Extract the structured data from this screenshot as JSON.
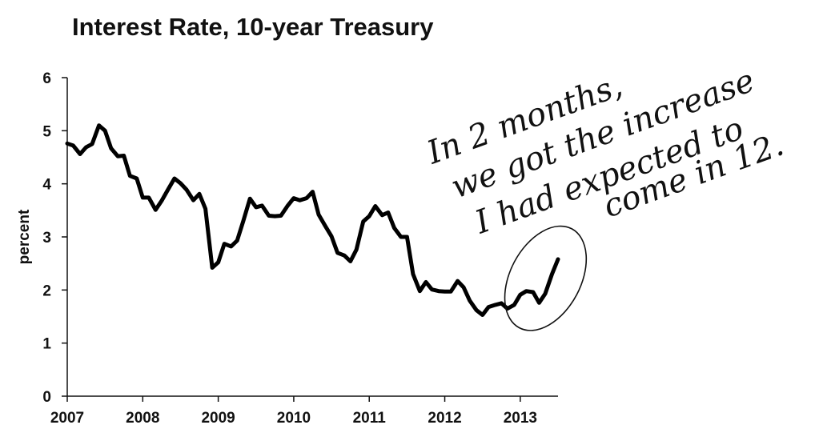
{
  "chart_data": {
    "type": "line",
    "title": "Interest Rate, 10-year Treasury",
    "ylabel": "percent",
    "xlabel": "",
    "ylim": [
      0,
      6
    ],
    "xlim": [
      2007,
      2013.5
    ],
    "yticks": [
      "0",
      "1",
      "2",
      "3",
      "4",
      "5",
      "6"
    ],
    "xticks": [
      "2007",
      "2008",
      "2009",
      "2010",
      "2011",
      "2012",
      "2013"
    ],
    "grid": false,
    "legend": "none",
    "line_color": "#000000",
    "series": [
      {
        "x": [
          2007.0,
          2007.08,
          2007.17,
          2007.25,
          2007.33,
          2007.42,
          2007.5,
          2007.58,
          2007.67,
          2007.75,
          2007.83,
          2007.92,
          2008.0,
          2008.08,
          2008.17,
          2008.25,
          2008.33,
          2008.42,
          2008.5,
          2008.58,
          2008.67,
          2008.75,
          2008.83,
          2008.92,
          2009.0,
          2009.08,
          2009.17,
          2009.25,
          2009.33,
          2009.42,
          2009.5,
          2009.58,
          2009.67,
          2009.75,
          2009.83,
          2009.92,
          2010.0,
          2010.08,
          2010.17,
          2010.25,
          2010.33,
          2010.42,
          2010.5,
          2010.58,
          2010.67,
          2010.75,
          2010.83,
          2010.92,
          2011.0,
          2011.08,
          2011.17,
          2011.25,
          2011.33,
          2011.42,
          2011.5,
          2011.58,
          2011.67,
          2011.75,
          2011.83,
          2011.92,
          2012.0,
          2012.08,
          2012.17,
          2012.25,
          2012.33,
          2012.42,
          2012.5,
          2012.58,
          2012.67,
          2012.75,
          2012.83,
          2012.92,
          2013.0,
          2013.08,
          2013.17,
          2013.25,
          2013.33,
          2013.42,
          2013.5
        ],
        "values": [
          4.76,
          4.72,
          4.56,
          4.69,
          4.75,
          5.1,
          5.0,
          4.67,
          4.52,
          4.53,
          4.15,
          4.1,
          3.74,
          3.74,
          3.51,
          3.68,
          3.88,
          4.1,
          4.01,
          3.89,
          3.69,
          3.81,
          3.53,
          2.42,
          2.52,
          2.87,
          2.82,
          2.93,
          3.29,
          3.72,
          3.56,
          3.59,
          3.4,
          3.39,
          3.4,
          3.59,
          3.73,
          3.69,
          3.73,
          3.85,
          3.42,
          3.2,
          3.01,
          2.7,
          2.65,
          2.54,
          2.76,
          3.29,
          3.39,
          3.58,
          3.41,
          3.46,
          3.17,
          3.0,
          3.0,
          2.3,
          1.98,
          2.15,
          2.01,
          1.98,
          1.97,
          1.97,
          2.17,
          2.05,
          1.8,
          1.62,
          1.53,
          1.68,
          1.72,
          1.75,
          1.65,
          1.72,
          1.91,
          1.98,
          1.96,
          1.76,
          1.93,
          2.3,
          2.58
        ]
      }
    ]
  },
  "annotation": {
    "lines": [
      "In 2 months,",
      "we got the increase",
      "I had expected to",
      "come in 12."
    ]
  }
}
